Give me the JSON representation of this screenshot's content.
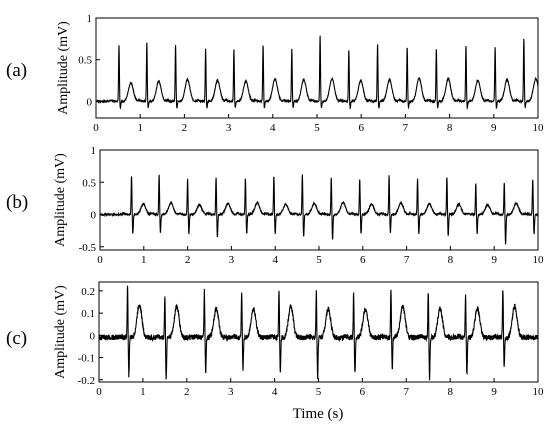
{
  "figure": {
    "xlabel": "Time (s)"
  },
  "chart_data": [
    {
      "type": "line",
      "panel_label": "(a)",
      "xlabel": "",
      "ylabel": "Amplitude (mV)",
      "xlim": [
        0,
        10
      ],
      "ylim": [
        -0.2,
        1.0
      ],
      "x_ticks": [
        0,
        1,
        2,
        3,
        4,
        5,
        6,
        7,
        8,
        9,
        10
      ],
      "y_ticks": [
        0,
        0.5,
        1
      ],
      "y_tick_labels": [
        "0",
        "0.5",
        "1"
      ],
      "grid": false,
      "color": "#000000",
      "baseline": 0.0,
      "qrs_times": [
        0.52,
        1.15,
        1.8,
        2.48,
        3.12,
        3.78,
        4.43,
        5.07,
        5.72,
        6.37,
        7.04,
        7.7,
        8.37,
        9.03,
        9.68
      ],
      "r_peak_values": [
        0.68,
        0.7,
        0.68,
        0.64,
        0.62,
        0.68,
        0.63,
        0.8,
        0.62,
        0.68,
        0.66,
        0.62,
        0.67,
        0.65,
        0.76
      ],
      "t_wave_values": [
        0.22,
        0.24,
        0.26,
        0.25,
        0.24,
        0.27,
        0.26,
        0.27,
        0.25,
        0.26,
        0.28,
        0.27,
        0.25,
        0.26,
        0.27
      ]
    },
    {
      "type": "line",
      "panel_label": "(b)",
      "xlabel": "",
      "ylabel": "Amplitude (mV)",
      "xlim": [
        0,
        10
      ],
      "ylim": [
        -0.55,
        1.0
      ],
      "x_ticks": [
        0,
        1,
        2,
        3,
        4,
        5,
        6,
        7,
        8,
        9,
        10
      ],
      "y_ticks": [
        -0.5,
        0,
        0.5,
        1
      ],
      "y_tick_labels": [
        "-0.5",
        "0",
        "0.5",
        "1"
      ],
      "grid": false,
      "color": "#000000",
      "baseline": 0.0,
      "qrs_times": [
        0.72,
        1.35,
        2.0,
        2.65,
        3.32,
        3.97,
        4.62,
        5.28,
        5.93,
        6.6,
        7.25,
        7.92,
        8.58,
        9.23,
        9.88
      ],
      "r_peak_values": [
        0.6,
        0.62,
        0.55,
        0.58,
        0.57,
        0.6,
        0.62,
        0.58,
        0.55,
        0.6,
        0.57,
        0.59,
        0.48,
        0.5,
        0.55
      ],
      "s_trough_values": [
        -0.3,
        -0.28,
        -0.3,
        -0.35,
        -0.3,
        -0.3,
        -0.35,
        -0.38,
        -0.3,
        -0.28,
        -0.3,
        -0.33,
        -0.3,
        -0.47,
        -0.3
      ],
      "t_wave_values": [
        0.16,
        0.18,
        0.15,
        0.17,
        0.18,
        0.16,
        0.17,
        0.19,
        0.16,
        0.18,
        0.17,
        0.16,
        0.15,
        0.17,
        0.16
      ]
    },
    {
      "type": "line",
      "panel_label": "(c)",
      "xlabel": "",
      "ylabel": "Amplitude (mV)",
      "xlim": [
        0,
        10
      ],
      "ylim": [
        -0.21,
        0.24
      ],
      "x_ticks": [
        0,
        1,
        2,
        3,
        4,
        5,
        6,
        7,
        8,
        9,
        10
      ],
      "y_ticks": [
        -0.2,
        -0.1,
        0,
        0.1,
        0.2
      ],
      "y_tick_labels": [
        "-0.2",
        "-0.1",
        "0",
        "0.1",
        "0.2"
      ],
      "grid": false,
      "color": "#000000",
      "baseline": -0.01,
      "qrs_times": [
        0.65,
        1.5,
        2.4,
        3.25,
        4.1,
        4.95,
        5.8,
        6.65,
        7.5,
        8.35,
        9.2
      ],
      "r_peak_values": [
        0.22,
        0.18,
        0.2,
        0.19,
        0.21,
        0.2,
        0.19,
        0.21,
        0.2,
        0.19,
        0.21
      ],
      "s_trough_values": [
        -0.18,
        -0.2,
        -0.17,
        -0.16,
        -0.16,
        -0.19,
        -0.17,
        -0.15,
        -0.2,
        -0.18,
        -0.14
      ],
      "t_wave_values": [
        0.14,
        0.13,
        0.12,
        0.12,
        0.13,
        0.12,
        0.12,
        0.13,
        0.12,
        0.12,
        0.13
      ]
    }
  ]
}
